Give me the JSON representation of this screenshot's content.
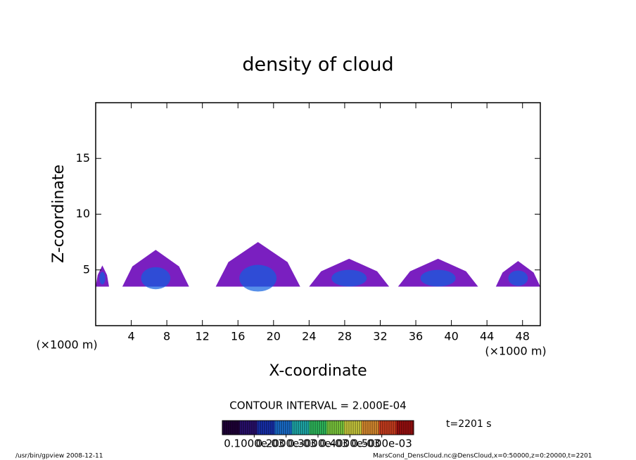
{
  "chart_data": {
    "type": "contour",
    "title": "density of cloud",
    "x_label": "X-coordinate",
    "y_label": "Z-coordinate",
    "x_unit": "(×1000 m)",
    "xlim": [
      0,
      50
    ],
    "xticks": [
      4,
      8,
      12,
      16,
      20,
      24,
      28,
      32,
      36,
      40,
      44,
      48
    ],
    "ylim": [
      0,
      20
    ],
    "yticks": [
      5,
      10,
      15
    ],
    "clouds": [
      {
        "x": [
          0,
          1.5
        ],
        "z": [
          3.5,
          5.4
        ]
      },
      {
        "x": [
          3,
          10.5
        ],
        "z": [
          3.5,
          6.8
        ]
      },
      {
        "x": [
          13.5,
          23
        ],
        "z": [
          3.5,
          7.5
        ]
      },
      {
        "x": [
          24,
          33
        ],
        "z": [
          3.5,
          6.0
        ]
      },
      {
        "x": [
          34,
          43
        ],
        "z": [
          3.5,
          6.0
        ]
      },
      {
        "x": [
          45,
          50
        ],
        "z": [
          3.5,
          5.8
        ]
      }
    ],
    "cloud_color": "#7a1fc0",
    "core_color": "#1060e0",
    "contour_interval": "CONTOUR INTERVAL = 2.000E-04",
    "time": "t=2201 s",
    "colorbar": {
      "lim": [
        0,
        0.0006
      ],
      "colors": [
        "#20003a",
        "#2a1070",
        "#1830b0",
        "#1a70d0",
        "#20b0b0",
        "#30c060",
        "#80d040",
        "#d0d040",
        "#e09030",
        "#d04020",
        "#a01010"
      ],
      "ticks": [
        {
          "value": 0.0001,
          "label": "0.1000e-03"
        },
        {
          "value": 0.0002,
          "label": "0.2000e-03"
        },
        {
          "value": 0.0003,
          "label": "0.3000e-03"
        },
        {
          "value": 0.0004,
          "label": "0.4000e-03"
        },
        {
          "value": 0.0005,
          "label": "0.5000e-03"
        }
      ]
    },
    "footer_left": "/usr/bin/gpview  2008-12-11",
    "footer_right": "MarsCond_DensCloud.nc@DensCloud,x=0:50000,z=0:20000,t=2201"
  }
}
